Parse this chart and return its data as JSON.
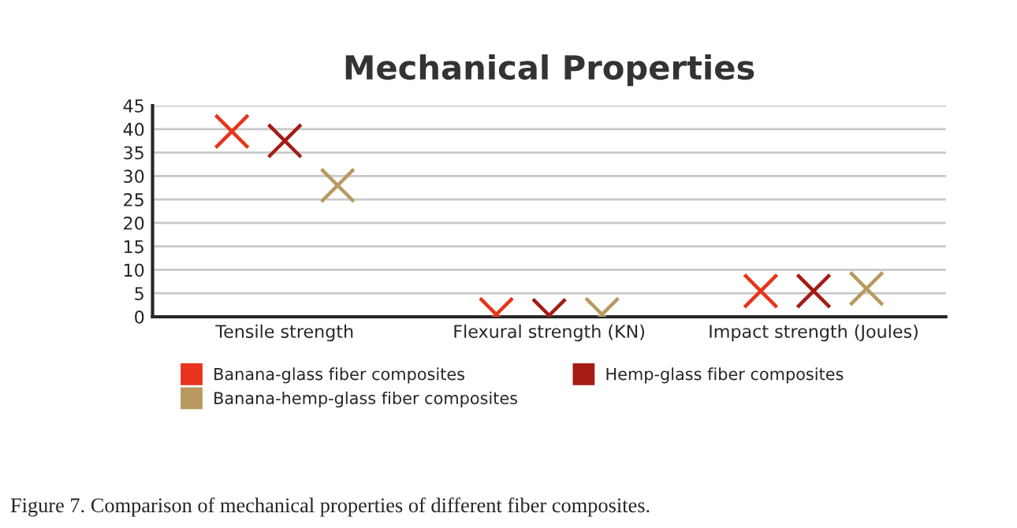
{
  "chart_data": {
    "type": "scatter",
    "title": "Mechanical Properties",
    "categories": [
      "Tensile strength",
      "Flexural strength (KN)",
      "Impact strength (Joules)"
    ],
    "series": [
      {
        "name": "Banana-glass fiber composites",
        "color": "#e8341c",
        "values": [
          39.5,
          0.5,
          5.5
        ]
      },
      {
        "name": "Hemp-glass fiber composites",
        "color": "#a51c14",
        "values": [
          37.5,
          0.3,
          5.5
        ]
      },
      {
        "name": "Banana-hemp-glass fiber composites",
        "color": "#b89a60",
        "values": [
          28,
          0.5,
          6
        ]
      }
    ],
    "ylim": [
      0,
      45
    ],
    "yticks": [
      0,
      5,
      10,
      15,
      20,
      25,
      30,
      35,
      40,
      45
    ],
    "grid": "y",
    "legend": "bottom",
    "marker": "cross",
    "annotations": [
      "Figure 7. Comparison of mechanical properties of different fiber composites."
    ]
  }
}
